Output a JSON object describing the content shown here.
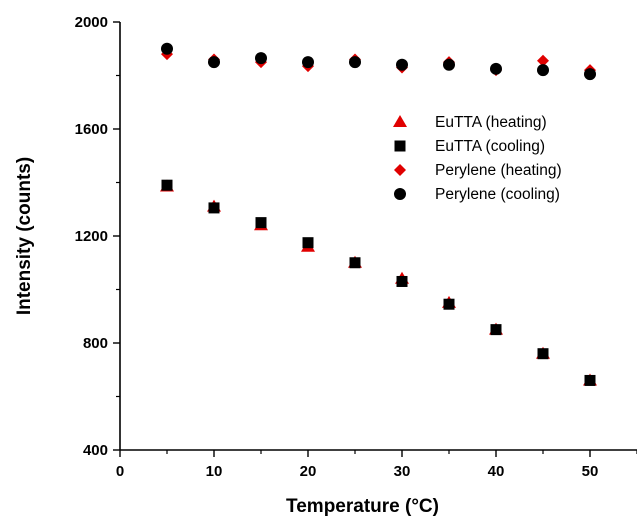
{
  "chart_data": {
    "type": "scatter",
    "xlabel": "Temperature (°C)",
    "ylabel": "Intensity (counts)",
    "xlim": [
      0,
      55
    ],
    "ylim": [
      400,
      2000
    ],
    "x_ticks": [
      0,
      10,
      20,
      30,
      40,
      50
    ],
    "x_tick_labels": [
      "0",
      "10",
      "20",
      "30",
      "40",
      "50"
    ],
    "y_ticks": [
      400,
      800,
      1200,
      1600,
      2000
    ],
    "y_tick_labels": [
      "400",
      "800",
      "1200",
      "1600",
      "2000"
    ],
    "grid": false,
    "legend_position": "right",
    "series": [
      {
        "name": "EuTTA (heating)",
        "marker": "triangle",
        "color": "#e00000",
        "x": [
          5,
          10,
          15,
          20,
          25,
          30,
          35,
          40,
          45,
          50
        ],
        "y": [
          1385,
          1310,
          1240,
          1160,
          1100,
          1040,
          950,
          850,
          760,
          660
        ]
      },
      {
        "name": "EuTTA (cooling)",
        "marker": "square",
        "color": "#000000",
        "x": [
          5,
          10,
          15,
          20,
          25,
          30,
          35,
          40,
          45,
          50
        ],
        "y": [
          1390,
          1305,
          1250,
          1175,
          1100,
          1030,
          945,
          850,
          760,
          660
        ]
      },
      {
        "name": "Perylene (heating)",
        "marker": "diamond",
        "color": "#e00000",
        "x": [
          5,
          10,
          15,
          20,
          25,
          30,
          35,
          40,
          45,
          50
        ],
        "y": [
          1880,
          1860,
          1850,
          1835,
          1860,
          1830,
          1850,
          1820,
          1855,
          1820
        ]
      },
      {
        "name": "Perylene (cooling)",
        "marker": "circle",
        "color": "#000000",
        "x": [
          5,
          10,
          15,
          20,
          25,
          30,
          35,
          40,
          45,
          50
        ],
        "y": [
          1900,
          1850,
          1865,
          1850,
          1850,
          1840,
          1840,
          1825,
          1820,
          1805
        ]
      }
    ]
  }
}
